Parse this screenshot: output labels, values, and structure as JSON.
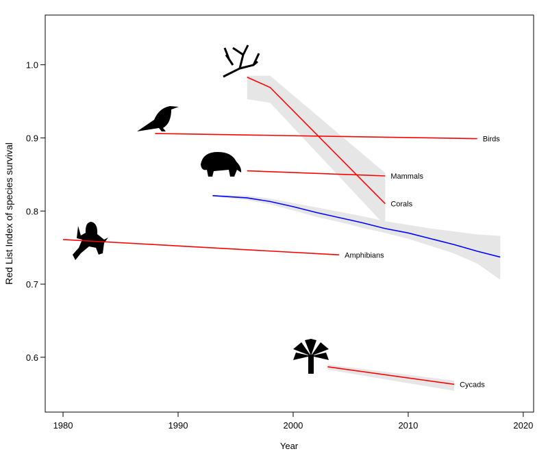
{
  "chart_data": {
    "type": "line",
    "xlabel": "Year",
    "ylabel": "Red List Index of species survival",
    "xlim": [
      1978.45,
      2020.9
    ],
    "ylim": [
      0.525,
      1.068
    ],
    "xticks": [
      1980,
      1990,
      2000,
      2010,
      2020
    ],
    "yticks": [
      0.6,
      0.7,
      0.8,
      0.9,
      {
        "value": 1,
        "label": "1.0"
      }
    ],
    "band_color": "#e6e6e6",
    "series": [
      {
        "name": "Birds",
        "color": "#ff0000",
        "x": [
          1988,
          2016
        ],
        "values": [
          0.906,
          0.899
        ]
      },
      {
        "name": "Corals",
        "color": "#ff0000",
        "x": [
          1996,
          1998,
          2008
        ],
        "values": [
          0.983,
          0.969,
          0.81
        ],
        "lower": [
          0.953,
          0.948,
          0.78
        ],
        "upper": [
          0.985,
          0.985,
          0.852
        ]
      },
      {
        "name": "Mammals",
        "color": "#ff0000",
        "x": [
          1996,
          2008
        ],
        "values": [
          0.855,
          0.848
        ]
      },
      {
        "name": "Amphibians",
        "color": "#ff0000",
        "x": [
          1980,
          2004
        ],
        "values": [
          0.761,
          0.74
        ]
      },
      {
        "name": "Cycads",
        "color": "#ff0000",
        "x": [
          2003,
          2014
        ],
        "values": [
          0.587,
          0.563
        ],
        "lower": [
          0.583,
          0.554
        ],
        "upper": [
          0.59,
          0.568
        ]
      },
      {
        "color": "#0000ff",
        "x": [
          1993,
          1996,
          1998,
          2000,
          2002,
          2004,
          2006,
          2008,
          2010,
          2012,
          2014,
          2016,
          2018
        ],
        "values": [
          0.821,
          0.818,
          0.813,
          0.806,
          0.798,
          0.791,
          0.784,
          0.776,
          0.77,
          0.762,
          0.754,
          0.745,
          0.737
        ],
        "lower": [
          0.82,
          0.815,
          0.809,
          0.801,
          0.792,
          0.785,
          0.777,
          0.77,
          0.762,
          0.752,
          0.742,
          0.728,
          0.706
        ],
        "upper": [
          0.822,
          0.821,
          0.817,
          0.811,
          0.805,
          0.799,
          0.793,
          0.786,
          0.781,
          0.776,
          0.772,
          0.768,
          0.766
        ]
      }
    ]
  }
}
